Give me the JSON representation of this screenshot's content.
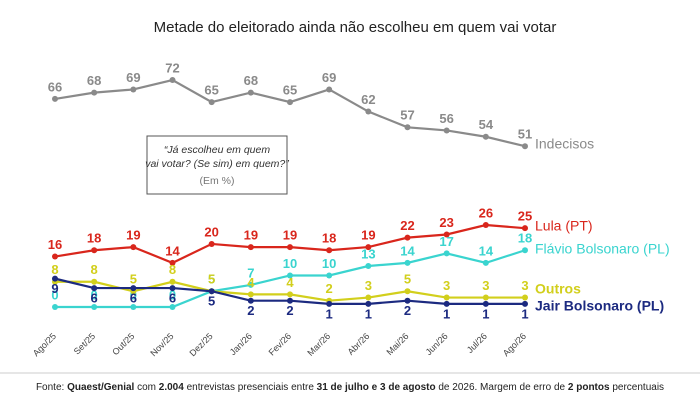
{
  "chart_data": {
    "type": "line",
    "title": "Metade do eleitorado ainda não escolheu em quem vai votar",
    "annotation": [
      "“Já escolheu em quem vai votar? (Se sim) em quem?”",
      "(Em %)"
    ],
    "categories": [
      "Ago/25",
      "Set/25",
      "Out/25",
      "Nov/25",
      "Dez/25",
      "Jan/26",
      "Fev/26",
      "Mar/26",
      "Abr/26",
      "Mai/26",
      "Jun/26",
      "Jul/26",
      "Ago/26"
    ],
    "ylim": [
      0,
      72
    ],
    "series": [
      {
        "name": "Indecisos",
        "color": "#8a8a8a",
        "values": [
          66,
          68,
          69,
          72,
          65,
          68,
          65,
          69,
          62,
          57,
          56,
          54,
          51
        ]
      },
      {
        "name": "Lula (PT)",
        "color": "#d9261c",
        "values": [
          16,
          18,
          19,
          14,
          20,
          19,
          19,
          18,
          19,
          22,
          23,
          26,
          25
        ]
      },
      {
        "name": "Flávio Bolsonaro (PL)",
        "color": "#3ad4cf",
        "values": [
          0,
          0,
          0,
          0,
          5,
          7,
          10,
          10,
          13,
          14,
          17,
          14,
          18
        ]
      },
      {
        "name": "Outros",
        "color": "#d2cf1c",
        "values": [
          8,
          8,
          5,
          8,
          5,
          4,
          4,
          2,
          3,
          5,
          3,
          3,
          3
        ]
      },
      {
        "name": "Jair Bolsonaro (PL)",
        "color": "#1c2a80",
        "values": [
          9,
          6,
          6,
          6,
          5,
          2,
          2,
          1,
          1,
          2,
          1,
          1,
          1
        ]
      }
    ],
    "source": [
      "Fonte: ",
      "Quaest/Genial",
      " com ",
      "2.004",
      " entrevistas presenciais entre ",
      "31 de julho e 3 de agosto",
      " de 2026. Margem de erro de ",
      "2 pontos",
      " percentuais"
    ]
  }
}
